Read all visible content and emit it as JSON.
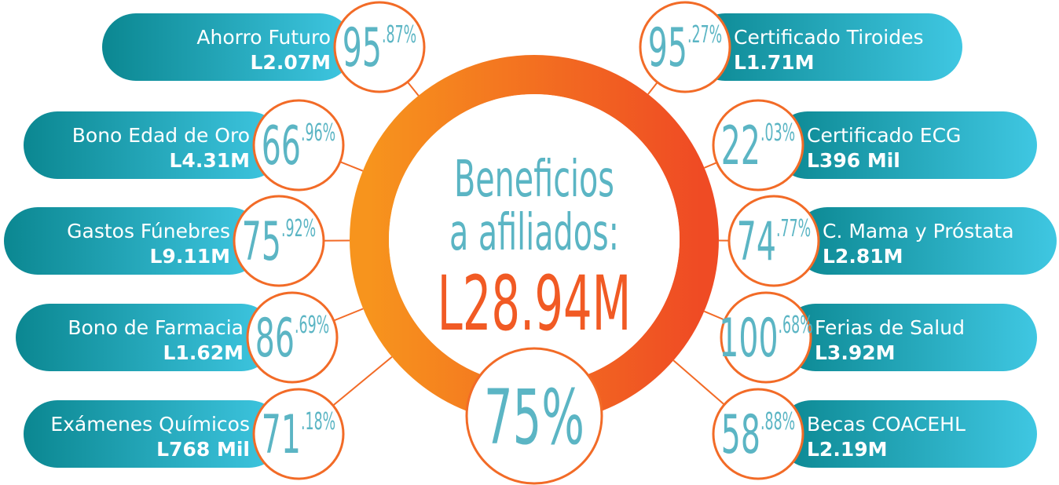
{
  "center": {
    "line1": "Beneficios",
    "line2": "a afiliados:",
    "total": "L28.94M",
    "percent": "75%"
  },
  "left": [
    {
      "name": "Ahorro Futuro",
      "amount": "L2.07M",
      "pct_int": "95",
      "pct_dec": ".87%"
    },
    {
      "name": "Bono Edad de Oro",
      "amount": "L4.31M",
      "pct_int": "66",
      "pct_dec": ".96%"
    },
    {
      "name": "Gastos Fúnebres",
      "amount": "L9.11M",
      "pct_int": "75",
      "pct_dec": ".92%"
    },
    {
      "name": "Bono de Farmacia",
      "amount": "L1.62M",
      "pct_int": "86",
      "pct_dec": ".69%"
    },
    {
      "name": "Exámenes Químicos",
      "amount": "L768 Mil",
      "pct_int": "71",
      "pct_dec": ".18%"
    }
  ],
  "right": [
    {
      "name": "Certificado Tiroides",
      "amount": "L1.71M",
      "pct_int": "95",
      "pct_dec": ".27%"
    },
    {
      "name": "Certificado ECG",
      "amount": "L396 Mil",
      "pct_int": "22",
      "pct_dec": ".03%"
    },
    {
      "name": "C. Mama y Próstata",
      "amount": "L2.81M",
      "pct_int": "74",
      "pct_dec": ".77%"
    },
    {
      "name": "Ferias de Salud",
      "amount": "L3.92M",
      "pct_int": "100",
      "pct_dec": ".68%"
    },
    {
      "name": "Becas COACEHL",
      "amount": "L2.19M",
      "pct_int": "58",
      "pct_dec": ".88%"
    }
  ]
}
